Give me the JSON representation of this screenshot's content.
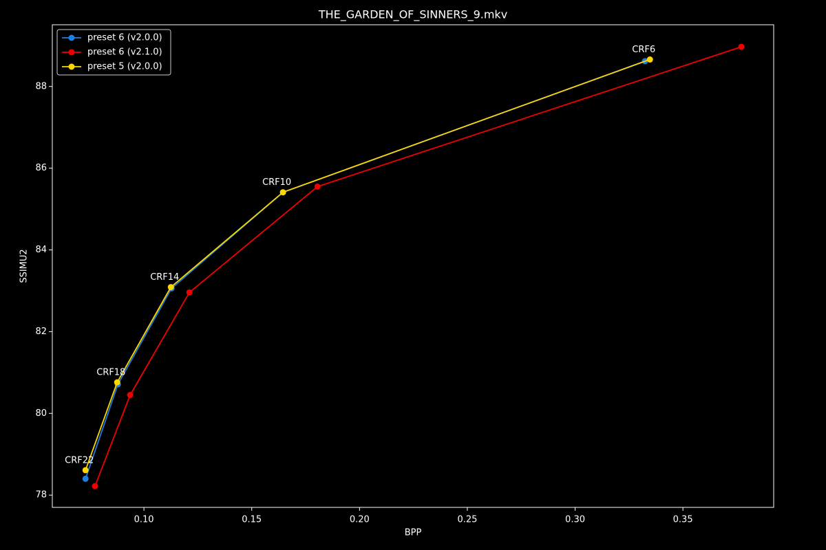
{
  "chart_data": {
    "type": "line",
    "title": "THE_GARDEN_OF_SINNERS_9.mkv",
    "xlabel": "BPP",
    "ylabel": "SSIMU2",
    "xlim": [
      0.0575,
      0.3921
    ],
    "ylim": [
      77.7,
      89.51
    ],
    "xticks": [
      {
        "value": 0.1,
        "label": "0.10"
      },
      {
        "value": 0.15,
        "label": "0.15"
      },
      {
        "value": 0.2,
        "label": "0.20"
      },
      {
        "value": 0.25,
        "label": "0.25"
      },
      {
        "value": 0.3,
        "label": "0.30"
      },
      {
        "value": 0.35,
        "label": "0.35"
      }
    ],
    "yticks": [
      78,
      80,
      82,
      84,
      86,
      88
    ],
    "grid": false,
    "legend": "upper left",
    "series": [
      {
        "name": "preset 6 (v2.0.0)",
        "color": "#1f7fe0",
        "x": [
          0.0729,
          0.0879,
          0.1128,
          0.1645,
          0.3324
        ],
        "values": [
          78.4,
          80.71,
          83.06,
          85.41,
          88.62
        ]
      },
      {
        "name": "preset 6 (v2.1.0)",
        "color": "#f00000",
        "x": [
          0.0773,
          0.0936,
          0.1211,
          0.1805,
          0.3771
        ],
        "values": [
          78.22,
          80.45,
          82.96,
          85.55,
          88.97
        ]
      },
      {
        "name": "preset 5 (v2.0.0)",
        "color": "#ffd700",
        "x": [
          0.0729,
          0.0876,
          0.1125,
          0.1645,
          0.3347
        ],
        "values": [
          78.61,
          80.76,
          83.09,
          85.41,
          88.66
        ],
        "labels": [
          "CRF22",
          "CRF18",
          "CRF14",
          "CRF10",
          "CRF6"
        ]
      }
    ]
  }
}
